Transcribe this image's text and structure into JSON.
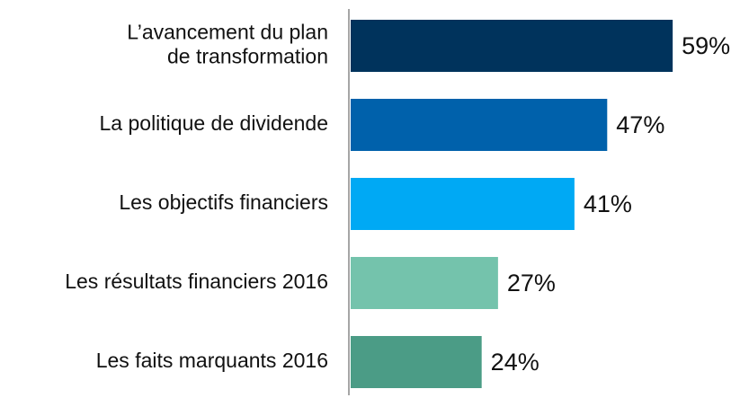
{
  "chart_data": {
    "type": "bar",
    "categories": [
      "L’avancement du plan de transformation",
      "La politique de dividende",
      "Les objectifs financiers",
      "Les résultats financiers 2016",
      "Les faits marquants 2016"
    ],
    "values": [
      59,
      47,
      41,
      27,
      24
    ],
    "value_labels": [
      "59%",
      "47%",
      "41%",
      "27%",
      "24%"
    ],
    "colors": [
      "#00335c",
      "#0061ab",
      "#00a9f4",
      "#74c3ac",
      "#4b9c86"
    ]
  }
}
